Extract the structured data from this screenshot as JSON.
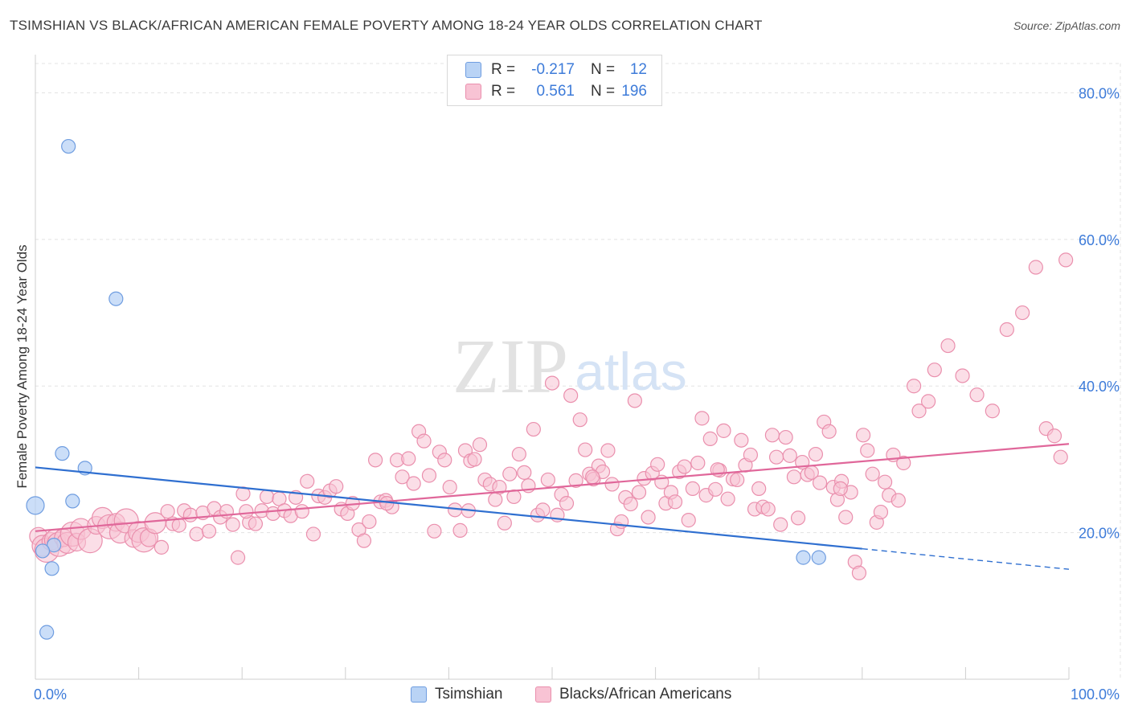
{
  "header": {
    "title": "TSIMSHIAN VS BLACK/AFRICAN AMERICAN FEMALE POVERTY AMONG 18-24 YEAR OLDS CORRELATION CHART",
    "source": "Source: ZipAtlas.com"
  },
  "watermark": {
    "zip": "ZIP",
    "atlas": "atlas"
  },
  "legend": {
    "series1": {
      "r_label": "R =",
      "r_value": "-0.217",
      "n_label": "N =",
      "n_value": "12"
    },
    "series2": {
      "r_label": "R =",
      "r_value": "0.561",
      "n_label": "N =",
      "n_value": "196"
    }
  },
  "chart_data": {
    "type": "scatter",
    "title": "TSIMSHIAN VS BLACK/AFRICAN AMERICAN FEMALE POVERTY AMONG 18-24 YEAR OLDS CORRELATION CHART",
    "xlabel": "",
    "ylabel": "Female Poverty Among 18-24 Year Olds",
    "xlim": [
      0,
      100
    ],
    "ylim": [
      0,
      84
    ],
    "x_tick_labels": [
      "0.0%",
      "100.0%"
    ],
    "y_ticks": [
      20,
      40,
      60,
      80
    ],
    "y_tick_labels": [
      "20.0%",
      "40.0%",
      "60.0%",
      "80.0%"
    ],
    "grid": true,
    "legend_position": "top-center",
    "colors": {
      "series1_fill": "#b9d3f5",
      "series1_stroke": "#6f9de0",
      "series1_line": "#2f6fd0",
      "series2_fill": "#f8c3d4",
      "series2_stroke": "#ea8fad",
      "series2_line": "#e0679a",
      "tick_label": "#3d7bd9",
      "grid": "#e3e3e3"
    },
    "series": [
      {
        "name": "Tsimshian",
        "r": -0.217,
        "n": 12,
        "trend": {
          "x_start": 0,
          "y_start": 28.9,
          "x_solid_end": 80,
          "y_solid_end": 17.8,
          "x_dash_end": 100,
          "y_dash_end": 15.0
        },
        "points": [
          {
            "x": 3.2,
            "y": 72.7
          },
          {
            "x": 7.8,
            "y": 51.9
          },
          {
            "x": 2.6,
            "y": 30.8
          },
          {
            "x": 4.8,
            "y": 28.8
          },
          {
            "x": 3.6,
            "y": 24.3
          },
          {
            "x": 0.0,
            "y": 23.7
          },
          {
            "x": 1.8,
            "y": 18.3
          },
          {
            "x": 0.7,
            "y": 17.5
          },
          {
            "x": 1.6,
            "y": 15.1
          },
          {
            "x": 1.1,
            "y": 6.4
          },
          {
            "x": 74.3,
            "y": 16.6
          },
          {
            "x": 75.8,
            "y": 16.6
          }
        ]
      },
      {
        "name": "Blacks/African Americans",
        "r": 0.561,
        "n": 196,
        "trend": {
          "x_start": 0,
          "y_start": 20.2,
          "x_end": 100,
          "y_end": 32.1
        },
        "points": [
          {
            "x": 0.3,
            "y": 19.5
          },
          {
            "x": 0.7,
            "y": 18.2
          },
          {
            "x": 1.1,
            "y": 17.6
          },
          {
            "x": 1.5,
            "y": 18.8
          },
          {
            "x": 1.9,
            "y": 19.0
          },
          {
            "x": 2.3,
            "y": 18.4
          },
          {
            "x": 2.7,
            "y": 19.3
          },
          {
            "x": 3.1,
            "y": 18.6
          },
          {
            "x": 3.6,
            "y": 19.8
          },
          {
            "x": 4.0,
            "y": 18.7
          },
          {
            "x": 4.4,
            "y": 20.5
          },
          {
            "x": 5.3,
            "y": 18.9
          },
          {
            "x": 5.9,
            "y": 21.0
          },
          {
            "x": 6.5,
            "y": 22.0
          },
          {
            "x": 7.2,
            "y": 20.8
          },
          {
            "x": 7.8,
            "y": 21.4
          },
          {
            "x": 8.2,
            "y": 20.0
          },
          {
            "x": 8.8,
            "y": 21.6
          },
          {
            "x": 9.5,
            "y": 19.2
          },
          {
            "x": 10.0,
            "y": 20.1
          },
          {
            "x": 10.5,
            "y": 19.0
          },
          {
            "x": 11.0,
            "y": 19.3
          },
          {
            "x": 11.6,
            "y": 21.3
          },
          {
            "x": 12.2,
            "y": 18.0
          },
          {
            "x": 12.8,
            "y": 22.9
          },
          {
            "x": 13.3,
            "y": 21.2
          },
          {
            "x": 13.9,
            "y": 21.0
          },
          {
            "x": 14.4,
            "y": 23.0
          },
          {
            "x": 15.0,
            "y": 22.4
          },
          {
            "x": 15.6,
            "y": 19.8
          },
          {
            "x": 16.2,
            "y": 22.7
          },
          {
            "x": 16.8,
            "y": 20.2
          },
          {
            "x": 17.3,
            "y": 23.3
          },
          {
            "x": 17.9,
            "y": 22.1
          },
          {
            "x": 18.5,
            "y": 22.9
          },
          {
            "x": 19.1,
            "y": 21.1
          },
          {
            "x": 19.6,
            "y": 16.6
          },
          {
            "x": 20.1,
            "y": 25.3
          },
          {
            "x": 20.7,
            "y": 21.4
          },
          {
            "x": 21.3,
            "y": 21.2
          },
          {
            "x": 21.9,
            "y": 23.0
          },
          {
            "x": 22.4,
            "y": 24.9
          },
          {
            "x": 23.0,
            "y": 22.6
          },
          {
            "x": 23.6,
            "y": 24.6
          },
          {
            "x": 24.1,
            "y": 23.0
          },
          {
            "x": 24.7,
            "y": 22.3
          },
          {
            "x": 25.2,
            "y": 24.8
          },
          {
            "x": 25.8,
            "y": 22.9
          },
          {
            "x": 26.3,
            "y": 27.0
          },
          {
            "x": 26.9,
            "y": 19.8
          },
          {
            "x": 27.4,
            "y": 25.0
          },
          {
            "x": 28.0,
            "y": 24.8
          },
          {
            "x": 28.5,
            "y": 25.7
          },
          {
            "x": 29.1,
            "y": 26.3
          },
          {
            "x": 29.6,
            "y": 23.2
          },
          {
            "x": 30.2,
            "y": 22.6
          },
          {
            "x": 30.7,
            "y": 24.0
          },
          {
            "x": 31.3,
            "y": 20.4
          },
          {
            "x": 31.8,
            "y": 18.9
          },
          {
            "x": 32.3,
            "y": 21.5
          },
          {
            "x": 32.9,
            "y": 29.9
          },
          {
            "x": 33.4,
            "y": 24.2
          },
          {
            "x": 33.9,
            "y": 24.4
          },
          {
            "x": 34.5,
            "y": 23.5
          },
          {
            "x": 35.0,
            "y": 29.9
          },
          {
            "x": 35.5,
            "y": 27.6
          },
          {
            "x": 36.1,
            "y": 30.1
          },
          {
            "x": 36.6,
            "y": 26.7
          },
          {
            "x": 37.1,
            "y": 33.8
          },
          {
            "x": 37.6,
            "y": 32.5
          },
          {
            "x": 38.1,
            "y": 27.8
          },
          {
            "x": 38.6,
            "y": 20.2
          },
          {
            "x": 39.1,
            "y": 31.0
          },
          {
            "x": 39.6,
            "y": 29.9
          },
          {
            "x": 40.1,
            "y": 26.2
          },
          {
            "x": 40.6,
            "y": 23.1
          },
          {
            "x": 41.1,
            "y": 20.3
          },
          {
            "x": 41.6,
            "y": 31.2
          },
          {
            "x": 42.1,
            "y": 29.8
          },
          {
            "x": 42.5,
            "y": 30.0
          },
          {
            "x": 43.0,
            "y": 32.0
          },
          {
            "x": 43.5,
            "y": 27.2
          },
          {
            "x": 44.0,
            "y": 26.6
          },
          {
            "x": 44.5,
            "y": 24.5
          },
          {
            "x": 44.9,
            "y": 26.2
          },
          {
            "x": 45.4,
            "y": 21.3
          },
          {
            "x": 45.9,
            "y": 28.0
          },
          {
            "x": 46.3,
            "y": 24.9
          },
          {
            "x": 46.8,
            "y": 30.7
          },
          {
            "x": 47.3,
            "y": 28.2
          },
          {
            "x": 47.7,
            "y": 26.4
          },
          {
            "x": 48.2,
            "y": 34.1
          },
          {
            "x": 48.6,
            "y": 22.4
          },
          {
            "x": 49.1,
            "y": 23.1
          },
          {
            "x": 49.6,
            "y": 27.2
          },
          {
            "x": 50.0,
            "y": 40.4
          },
          {
            "x": 50.5,
            "y": 22.4
          },
          {
            "x": 50.9,
            "y": 25.2
          },
          {
            "x": 51.4,
            "y": 24.0
          },
          {
            "x": 51.8,
            "y": 38.7
          },
          {
            "x": 52.3,
            "y": 27.1
          },
          {
            "x": 52.7,
            "y": 35.4
          },
          {
            "x": 53.2,
            "y": 31.3
          },
          {
            "x": 53.6,
            "y": 28.0
          },
          {
            "x": 54.0,
            "y": 27.3
          },
          {
            "x": 54.5,
            "y": 29.1
          },
          {
            "x": 54.9,
            "y": 28.3
          },
          {
            "x": 55.4,
            "y": 31.2
          },
          {
            "x": 55.8,
            "y": 26.6
          },
          {
            "x": 56.3,
            "y": 20.5
          },
          {
            "x": 56.7,
            "y": 21.5
          },
          {
            "x": 57.1,
            "y": 24.8
          },
          {
            "x": 57.6,
            "y": 23.9
          },
          {
            "x": 58.0,
            "y": 38.0
          },
          {
            "x": 58.4,
            "y": 25.5
          },
          {
            "x": 58.9,
            "y": 27.4
          },
          {
            "x": 59.3,
            "y": 22.1
          },
          {
            "x": 59.7,
            "y": 28.1
          },
          {
            "x": 60.2,
            "y": 29.3
          },
          {
            "x": 60.6,
            "y": 26.9
          },
          {
            "x": 61.0,
            "y": 24.0
          },
          {
            "x": 61.5,
            "y": 25.5
          },
          {
            "x": 61.9,
            "y": 24.2
          },
          {
            "x": 62.3,
            "y": 28.3
          },
          {
            "x": 62.8,
            "y": 29.0
          },
          {
            "x": 63.2,
            "y": 21.7
          },
          {
            "x": 63.6,
            "y": 26.0
          },
          {
            "x": 64.1,
            "y": 29.5
          },
          {
            "x": 64.5,
            "y": 35.6
          },
          {
            "x": 64.9,
            "y": 25.1
          },
          {
            "x": 65.3,
            "y": 32.8
          },
          {
            "x": 65.8,
            "y": 25.9
          },
          {
            "x": 66.2,
            "y": 28.5
          },
          {
            "x": 66.6,
            "y": 33.9
          },
          {
            "x": 67.0,
            "y": 24.6
          },
          {
            "x": 67.5,
            "y": 27.3
          },
          {
            "x": 67.9,
            "y": 27.2
          },
          {
            "x": 68.3,
            "y": 32.6
          },
          {
            "x": 68.7,
            "y": 29.2
          },
          {
            "x": 69.2,
            "y": 30.6
          },
          {
            "x": 69.6,
            "y": 23.2
          },
          {
            "x": 70.0,
            "y": 26.0
          },
          {
            "x": 70.4,
            "y": 23.5
          },
          {
            "x": 70.9,
            "y": 23.2
          },
          {
            "x": 71.3,
            "y": 33.3
          },
          {
            "x": 71.7,
            "y": 30.3
          },
          {
            "x": 72.1,
            "y": 21.1
          },
          {
            "x": 72.6,
            "y": 33.0
          },
          {
            "x": 73.0,
            "y": 30.5
          },
          {
            "x": 73.4,
            "y": 27.6
          },
          {
            "x": 73.8,
            "y": 22.0
          },
          {
            "x": 74.2,
            "y": 29.6
          },
          {
            "x": 74.7,
            "y": 27.9
          },
          {
            "x": 75.1,
            "y": 28.2
          },
          {
            "x": 75.5,
            "y": 30.7
          },
          {
            "x": 75.9,
            "y": 26.8
          },
          {
            "x": 76.3,
            "y": 35.1
          },
          {
            "x": 76.8,
            "y": 33.8
          },
          {
            "x": 77.2,
            "y": 26.2
          },
          {
            "x": 77.6,
            "y": 24.5
          },
          {
            "x": 78.0,
            "y": 27.0
          },
          {
            "x": 78.4,
            "y": 22.1
          },
          {
            "x": 78.9,
            "y": 25.5
          },
          {
            "x": 79.3,
            "y": 16.0
          },
          {
            "x": 79.7,
            "y": 14.5
          },
          {
            "x": 80.1,
            "y": 33.3
          },
          {
            "x": 80.5,
            "y": 31.2
          },
          {
            "x": 81.0,
            "y": 28.0
          },
          {
            "x": 81.4,
            "y": 21.4
          },
          {
            "x": 81.8,
            "y": 22.8
          },
          {
            "x": 82.2,
            "y": 26.9
          },
          {
            "x": 82.6,
            "y": 25.1
          },
          {
            "x": 83.0,
            "y": 30.6
          },
          {
            "x": 83.5,
            "y": 24.4
          },
          {
            "x": 84.0,
            "y": 29.5
          },
          {
            "x": 85.0,
            "y": 40.0
          },
          {
            "x": 85.5,
            "y": 36.6
          },
          {
            "x": 86.4,
            "y": 37.9
          },
          {
            "x": 87.0,
            "y": 42.2
          },
          {
            "x": 88.3,
            "y": 45.5
          },
          {
            "x": 89.7,
            "y": 41.4
          },
          {
            "x": 91.1,
            "y": 38.8
          },
          {
            "x": 92.6,
            "y": 36.6
          },
          {
            "x": 94.0,
            "y": 47.7
          },
          {
            "x": 95.5,
            "y": 50.0
          },
          {
            "x": 96.8,
            "y": 56.2
          },
          {
            "x": 97.8,
            "y": 34.2
          },
          {
            "x": 98.6,
            "y": 33.2
          },
          {
            "x": 99.2,
            "y": 30.3
          },
          {
            "x": 99.7,
            "y": 57.2
          },
          {
            "x": 20.4,
            "y": 22.9
          },
          {
            "x": 34.0,
            "y": 24.0
          },
          {
            "x": 41.9,
            "y": 23.0
          },
          {
            "x": 53.9,
            "y": 27.6
          },
          {
            "x": 66.0,
            "y": 28.6
          },
          {
            "x": 77.9,
            "y": 26.0
          }
        ]
      }
    ]
  }
}
